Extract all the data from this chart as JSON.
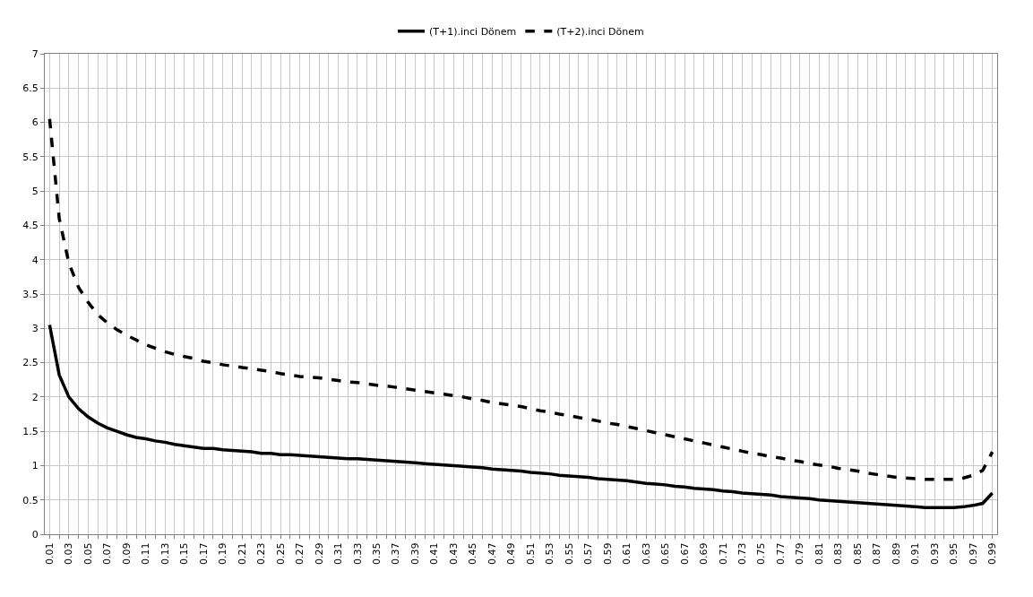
{
  "chart_data": {
    "type": "line",
    "categories": [
      "0.01",
      null,
      "0.03",
      null,
      "0.05",
      null,
      "0.07",
      null,
      "0.09",
      null,
      "0.11",
      null,
      "0.13",
      null,
      "0.15",
      null,
      "0.17",
      null,
      "0.19",
      null,
      "0.21",
      null,
      "0.23",
      null,
      "0.25",
      null,
      "0.27",
      null,
      "0.29",
      null,
      "0.31",
      null,
      "0.33",
      null,
      "0.35",
      null,
      "0.37",
      null,
      "0.39",
      null,
      "0.41",
      null,
      "0.43",
      null,
      "0.45",
      null,
      "0.47",
      null,
      "0.49",
      null,
      "0.51",
      null,
      "0.53",
      null,
      "0.55",
      null,
      "0.57",
      null,
      "0.59",
      null,
      "0.61",
      null,
      "0.63",
      null,
      "0.65",
      null,
      "0.67",
      null,
      "0.69",
      null,
      "0.71",
      null,
      "0.73",
      null,
      "0.75",
      null,
      "0.77",
      null,
      "0.79",
      null,
      "0.81",
      null,
      "0.83",
      null,
      "0.85",
      null,
      "0.87",
      null,
      "0.89",
      null,
      "0.91",
      null,
      "0.93",
      null,
      "0.95",
      null,
      "0.97",
      null,
      "0.99"
    ],
    "series": [
      {
        "name": "(T+1).inci Dönem",
        "color": "#000000",
        "line_style": "solid",
        "values": [
          3.05,
          2.32,
          2.0,
          1.83,
          1.71,
          1.62,
          1.55,
          1.5,
          1.45,
          1.41,
          1.39,
          1.36,
          1.34,
          1.31,
          1.29,
          1.27,
          1.25,
          1.25,
          1.23,
          1.22,
          1.21,
          1.2,
          1.18,
          1.18,
          1.16,
          1.16,
          1.15,
          1.14,
          1.13,
          1.12,
          1.11,
          1.1,
          1.1,
          1.09,
          1.08,
          1.07,
          1.06,
          1.05,
          1.04,
          1.03,
          1.02,
          1.01,
          1.0,
          0.99,
          0.98,
          0.97,
          0.95,
          0.94,
          0.93,
          0.92,
          0.9,
          0.89,
          0.88,
          0.86,
          0.85,
          0.84,
          0.83,
          0.81,
          0.8,
          0.79,
          0.78,
          0.76,
          0.74,
          0.73,
          0.72,
          0.7,
          0.69,
          0.67,
          0.66,
          0.65,
          0.63,
          0.62,
          0.6,
          0.59,
          0.58,
          0.57,
          0.55,
          0.54,
          0.53,
          0.52,
          0.5,
          0.49,
          0.48,
          0.47,
          0.46,
          0.45,
          0.44,
          0.43,
          0.42,
          0.41,
          0.4,
          0.39,
          0.39,
          0.39,
          0.39,
          0.4,
          0.42,
          0.45,
          0.6
        ]
      },
      {
        "name": "(T+2).inci Dönem",
        "color": "#000000",
        "line_style": "dashed",
        "values": [
          6.05,
          4.6,
          3.95,
          3.6,
          3.38,
          3.2,
          3.08,
          2.98,
          2.9,
          2.83,
          2.76,
          2.71,
          2.66,
          2.62,
          2.59,
          2.56,
          2.52,
          2.5,
          2.47,
          2.45,
          2.43,
          2.41,
          2.39,
          2.37,
          2.34,
          2.32,
          2.3,
          2.29,
          2.28,
          2.26,
          2.24,
          2.22,
          2.21,
          2.19,
          2.17,
          2.16,
          2.14,
          2.12,
          2.1,
          2.08,
          2.06,
          2.04,
          2.02,
          2.0,
          1.97,
          1.95,
          1.92,
          1.9,
          1.88,
          1.86,
          1.83,
          1.8,
          1.78,
          1.75,
          1.73,
          1.7,
          1.68,
          1.65,
          1.62,
          1.6,
          1.57,
          1.54,
          1.51,
          1.48,
          1.45,
          1.42,
          1.39,
          1.36,
          1.33,
          1.3,
          1.27,
          1.24,
          1.21,
          1.18,
          1.16,
          1.13,
          1.11,
          1.08,
          1.06,
          1.03,
          1.01,
          0.99,
          0.96,
          0.94,
          0.92,
          0.89,
          0.87,
          0.85,
          0.83,
          0.82,
          0.81,
          0.8,
          0.8,
          0.8,
          0.8,
          0.82,
          0.86,
          0.93,
          1.2
        ]
      }
    ],
    "ylim": [
      0,
      7
    ],
    "yticks": [
      0,
      0.5,
      1,
      1.5,
      2,
      2.5,
      3,
      3.5,
      4,
      4.5,
      5,
      5.5,
      6,
      6.5,
      7
    ],
    "grid": true,
    "legend": "top",
    "marker": "none"
  }
}
